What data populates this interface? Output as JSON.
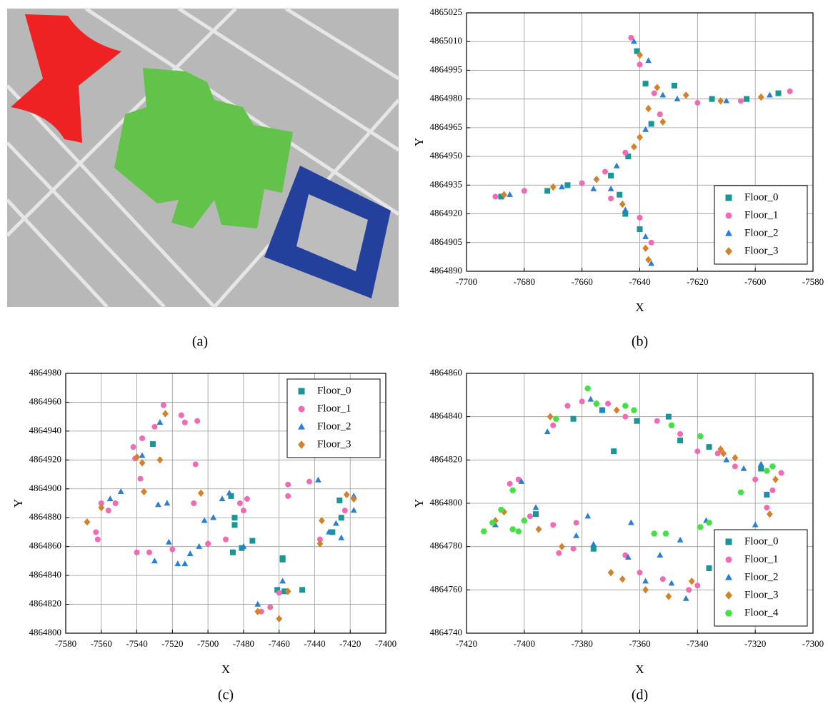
{
  "image_panel": {
    "caption": "(a)"
  },
  "chart_data": [
    {
      "type": "scatter",
      "caption": "(b)",
      "xlabel": "X",
      "ylabel": "Y",
      "xlim": [
        -7700,
        -7580
      ],
      "ylim": [
        4864890,
        4865025
      ],
      "xticks": [
        -7700,
        -7680,
        -7660,
        -7640,
        -7620,
        -7600,
        -7580
      ],
      "yticks": [
        4864890,
        4864905,
        4864920,
        4864935,
        4864950,
        4864965,
        4864980,
        4864995,
        4865010,
        4865025
      ],
      "grid": true,
      "legend": "lower right",
      "series": [
        {
          "name": "Floor_0",
          "color": "#1a9696",
          "marker": "square",
          "x": [
            -7688,
            -7672,
            -7665,
            -7650,
            -7644,
            -7636,
            -7641,
            -7638,
            -7628,
            -7615,
            -7603,
            -7592,
            -7645,
            -7640,
            -7647
          ],
          "values": [
            4864929,
            4864932,
            4864935,
            4864940,
            4864950,
            4864967,
            4865005,
            4864988,
            4864987,
            4864980,
            4864980,
            4864983,
            4864920,
            4864912,
            4864930
          ]
        },
        {
          "name": "Floor_1",
          "color": "#f06bb4",
          "marker": "circle",
          "x": [
            -7690,
            -7680,
            -7660,
            -7652,
            -7643,
            -7640,
            -7635,
            -7620,
            -7605,
            -7588,
            -7650,
            -7640,
            -7636,
            -7645,
            -7633
          ],
          "values": [
            4864929,
            4864932,
            4864936,
            4864942,
            4865012,
            4864998,
            4864983,
            4864978,
            4864979,
            4864984,
            4864928,
            4864918,
            4864905,
            4864952,
            4864972
          ]
        },
        {
          "name": "Floor_2",
          "color": "#2a7fd4",
          "marker": "triangle",
          "x": [
            -7685,
            -7667,
            -7656,
            -7648,
            -7642,
            -7637,
            -7632,
            -7610,
            -7595,
            -7650,
            -7645,
            -7638,
            -7636,
            -7638,
            -7627
          ],
          "values": [
            4864930,
            4864934,
            4864933,
            4864945,
            4865010,
            4865000,
            4864982,
            4864979,
            4864982,
            4864933,
            4864922,
            4864908,
            4864894,
            4864964,
            4864980
          ]
        },
        {
          "name": "Floor_3",
          "color": "#d4822a",
          "marker": "diamond",
          "x": [
            -7687,
            -7670,
            -7655,
            -7642,
            -7637,
            -7640,
            -7634,
            -7624,
            -7612,
            -7598,
            -7646,
            -7638,
            -7637,
            -7640,
            -7632
          ],
          "values": [
            4864930,
            4864934,
            4864938,
            4864955,
            4864975,
            4865003,
            4864986,
            4864982,
            4864979,
            4864981,
            4864925,
            4864902,
            4864896,
            4864960,
            4864968
          ]
        }
      ]
    },
    {
      "type": "scatter",
      "caption": "(c)",
      "xlabel": "X",
      "ylabel": "Y",
      "xlim": [
        -7580,
        -7400
      ],
      "ylim": [
        4864800,
        4864980
      ],
      "xticks": [
        -7580,
        -7560,
        -7540,
        -7520,
        -7500,
        -7480,
        -7460,
        -7440,
        -7420,
        -7400
      ],
      "yticks": [
        4864800,
        4864820,
        4864840,
        4864860,
        4864880,
        4864900,
        4864920,
        4864940,
        4864960,
        4864980
      ],
      "grid": true,
      "legend": "upper right",
      "series": [
        {
          "name": "Floor_0",
          "color": "#1a9696",
          "marker": "square",
          "x": [
            -7531,
            -7487,
            -7485,
            -7485,
            -7486,
            -7481,
            -7475,
            -7458,
            -7458,
            -7461,
            -7447,
            -7426,
            -7425,
            -7430,
            -7457
          ],
          "values": [
            4864931,
            4864895,
            4864880,
            4864875,
            4864856,
            4864859,
            4864864,
            4864852,
            4864851,
            4864830,
            4864830,
            4864892,
            4864880,
            4864870,
            4864829
          ]
        },
        {
          "name": "Floor_1",
          "color": "#f06bb4",
          "marker": "circle",
          "x": [
            -7525,
            -7530,
            -7537,
            -7542,
            -7541,
            -7538,
            -7515,
            -7513,
            -7506,
            -7507,
            -7560,
            -7556,
            -7552,
            -7563,
            -7562,
            -7540,
            -7533,
            -7520,
            -7508,
            -7500,
            -7490,
            -7482,
            -7478,
            -7480,
            -7455,
            -7455,
            -7443,
            -7437,
            -7423,
            -7470,
            -7465,
            -7460
          ],
          "values": [
            4864958,
            4864943,
            4864935,
            4864929,
            4864921,
            4864907,
            4864951,
            4864946,
            4864947,
            4864917,
            4864890,
            4864885,
            4864890,
            4864870,
            4864865,
            4864856,
            4864856,
            4864858,
            4864890,
            4864862,
            4864865,
            4864890,
            4864893,
            4864885,
            4864903,
            4864895,
            4864905,
            4864865,
            4864885,
            4864815,
            4864818,
            4864828
          ]
        },
        {
          "name": "Floor_2",
          "color": "#2a7fd4",
          "marker": "triangle",
          "x": [
            -7527,
            -7537,
            -7555,
            -7549,
            -7528,
            -7523,
            -7530,
            -7522,
            -7517,
            -7513,
            -7510,
            -7505,
            -7502,
            -7497,
            -7492,
            -7488,
            -7480,
            -7472,
            -7458,
            -7438,
            -7432,
            -7428,
            -7425,
            -7418,
            -7418
          ],
          "values": [
            4864946,
            4864923,
            4864893,
            4864898,
            4864889,
            4864890,
            4864850,
            4864863,
            4864848,
            4864848,
            4864855,
            4864860,
            4864878,
            4864880,
            4864893,
            4864897,
            4864860,
            4864820,
            4864836,
            4864906,
            4864870,
            4864876,
            4864866,
            4864895,
            4864885
          ]
        },
        {
          "name": "Floor_3",
          "color": "#d4822a",
          "marker": "diamond",
          "x": [
            -7524,
            -7527,
            -7537,
            -7536,
            -7540,
            -7568,
            -7560,
            -7504,
            -7472,
            -7460,
            -7455,
            -7437,
            -7436,
            -7422,
            -7418
          ],
          "values": [
            4864952,
            4864920,
            4864918,
            4864898,
            4864922,
            4864877,
            4864887,
            4864897,
            4864815,
            4864810,
            4864829,
            4864862,
            4864878,
            4864896,
            4864893
          ]
        }
      ]
    },
    {
      "type": "scatter",
      "caption": "(d)",
      "xlabel": "X",
      "ylabel": "Y",
      "xlim": [
        -7420,
        -7300
      ],
      "ylim": [
        4864740,
        4864860
      ],
      "xticks": [
        -7420,
        -7400,
        -7380,
        -7360,
        -7340,
        -7320,
        -7300
      ],
      "yticks": [
        4864740,
        4864760,
        4864780,
        4864800,
        4864820,
        4864840,
        4864860
      ],
      "grid": true,
      "legend": "lower right",
      "series": [
        {
          "name": "Floor_0",
          "color": "#1a9696",
          "marker": "square",
          "x": [
            -7396,
            -7383,
            -7376,
            -7373,
            -7369,
            -7361,
            -7350,
            -7346,
            -7336,
            -7336,
            -7318,
            -7316
          ],
          "values": [
            4864795,
            4864839,
            4864779,
            4864843,
            4864824,
            4864838,
            4864840,
            4864829,
            4864826,
            4864770,
            4864816,
            4864804
          ]
        },
        {
          "name": "Floor_1",
          "color": "#f06bb4",
          "marker": "circle",
          "x": [
            -7405,
            -7402,
            -7398,
            -7390,
            -7388,
            -7383,
            -7390,
            -7385,
            -7380,
            -7371,
            -7365,
            -7354,
            -7346,
            -7340,
            -7333,
            -7327,
            -7320,
            -7316,
            -7314,
            -7311,
            -7365,
            -7360,
            -7352,
            -7343,
            -7340,
            -7382
          ],
          "values": [
            4864809,
            4864811,
            4864794,
            4864790,
            4864777,
            4864779,
            4864836,
            4864845,
            4864847,
            4864846,
            4864840,
            4864838,
            4864832,
            4864824,
            4864823,
            4864817,
            4864811,
            4864798,
            4864806,
            4864814,
            4864776,
            4864768,
            4864765,
            4864760,
            4864762,
            4864791
          ]
        },
        {
          "name": "Floor_2",
          "color": "#2a7fd4",
          "marker": "triangle",
          "x": [
            -7410,
            -7401,
            -7396,
            -7392,
            -7377,
            -7373,
            -7382,
            -7376,
            -7378,
            -7363,
            -7364,
            -7358,
            -7353,
            -7349,
            -7344,
            -7346,
            -7337,
            -7330,
            -7324,
            -7318,
            -7316,
            -7320
          ],
          "values": [
            4864790,
            4864810,
            4864798,
            4864833,
            4864848,
            4864843,
            4864785,
            4864781,
            4864794,
            4864791,
            4864775,
            4864764,
            4864776,
            4864763,
            4864756,
            4864783,
            4864792,
            4864820,
            4864816,
            4864818,
            4864804,
            4864790
          ]
        },
        {
          "name": "Floor_3",
          "color": "#d4822a",
          "marker": "diamond",
          "x": [
            -7410,
            -7407,
            -7395,
            -7391,
            -7387,
            -7375,
            -7368,
            -7370,
            -7366,
            -7358,
            -7350,
            -7342,
            -7332,
            -7331,
            -7315,
            -7313,
            -7327
          ],
          "values": [
            4864792,
            4864796,
            4864788,
            4864840,
            4864780,
            4864846,
            4864843,
            4864768,
            4864765,
            4864760,
            4864757,
            4864764,
            4864825,
            4864823,
            4864795,
            4864811,
            4864821
          ]
        },
        {
          "name": "Floor_4",
          "color": "#44e044",
          "marker": "hexagon",
          "x": [
            -7414,
            -7411,
            -7408,
            -7404,
            -7402,
            -7400,
            -7404,
            -7389,
            -7378,
            -7375,
            -7365,
            -7362,
            -7355,
            -7351,
            -7339,
            -7339,
            -7336,
            -7325,
            -7314,
            -7316,
            -7349
          ],
          "values": [
            4864787,
            4864791,
            4864797,
            4864788,
            4864787,
            4864792,
            4864806,
            4864839,
            4864853,
            4864846,
            4864845,
            4864843,
            4864786,
            4864786,
            4864831,
            4864789,
            4864791,
            4864805,
            4864817,
            4864815,
            4864836
          ]
        }
      ]
    }
  ]
}
